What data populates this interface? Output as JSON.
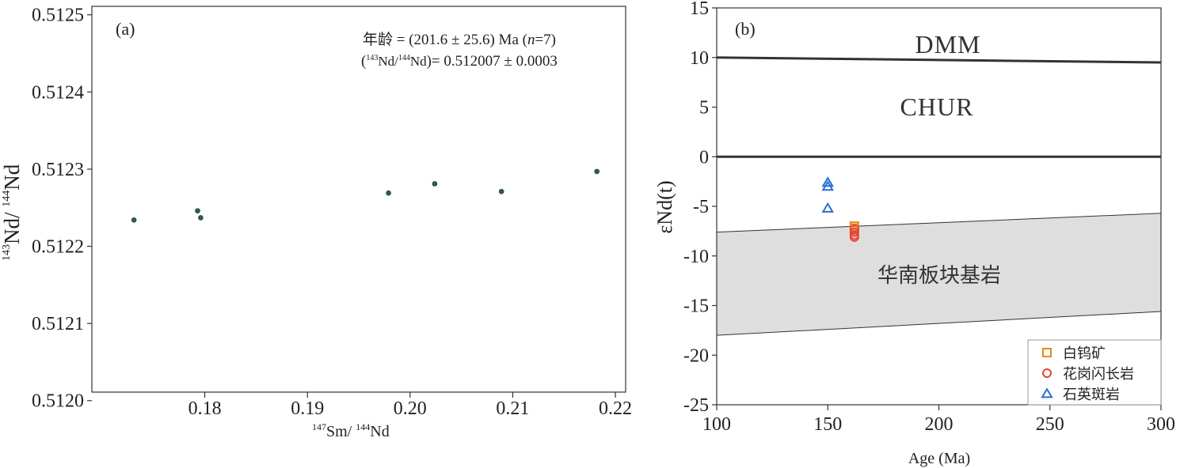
{
  "chart_data": [
    {
      "type": "scatter",
      "panel_label": "(a)",
      "xlabel": {
        "sup1": "147",
        "el1": "Sm/ ",
        "sup2": "144",
        "el2": "Nd"
      },
      "ylabel": {
        "sup1": "143",
        "el1": "Nd/ ",
        "sup2": "144",
        "el2": "Nd"
      },
      "xlim": [
        0.169,
        0.221
      ],
      "ylim": [
        0.512011,
        0.512511
      ],
      "xticks": [
        0.18,
        0.19,
        0.2,
        0.21,
        0.22
      ],
      "xtick_labels": [
        "0.18",
        "0.19",
        "0.20",
        "0.21",
        "0.22"
      ],
      "yticks": [
        0.512,
        0.5121,
        0.5122,
        0.5123,
        0.5124,
        0.5125
      ],
      "ytick_labels": [
        "0.5120",
        "0.5121",
        "0.5122",
        "0.5123",
        "0.5124",
        "0.5125"
      ],
      "points": [
        {
          "x": 0.1731,
          "y": 0.512234
        },
        {
          "x": 0.1793,
          "y": 0.512246
        },
        {
          "x": 0.1796,
          "y": 0.512237
        },
        {
          "x": 0.1979,
          "y": 0.512269
        },
        {
          "x": 0.2024,
          "y": 0.512281
        },
        {
          "x": 0.2089,
          "y": 0.512271
        },
        {
          "x": 0.2182,
          "y": 0.512297
        }
      ],
      "point_color": "#2e5d4f",
      "annotation_line1": "年龄 = (201.6 ± 25.6) Ma (",
      "annotation_n": "n",
      "annotation_line1_end": "=7)",
      "annotation_line2_open": "(",
      "annotation_line2_sup1": "143",
      "annotation_line2_el1": "Nd/",
      "annotation_line2_sup2": "144",
      "annotation_line2_el2": "Nd",
      "annotation_line2_rest": ")= 0.512007 ± 0.0003"
    },
    {
      "type": "scatter",
      "panel_label": "(b)",
      "xlabel": "Age (Ma)",
      "ylabel": "εNd(t)",
      "xlim": [
        100,
        300
      ],
      "ylim": [
        -25,
        15
      ],
      "xticks": [
        100,
        150,
        200,
        250,
        300
      ],
      "xtick_labels": [
        "100",
        "150",
        "200",
        "250",
        "300"
      ],
      "yticks": [
        15,
        10,
        5,
        0,
        -5,
        -10,
        -15,
        -20,
        -25
      ],
      "ytick_labels": [
        "15",
        "10",
        "5",
        "0",
        "-5",
        "-10",
        "-15",
        "-20",
        "-25"
      ],
      "dmm_line": [
        [
          100,
          10.0
        ],
        [
          300,
          9.5
        ]
      ],
      "chur_line": [
        [
          100,
          0
        ],
        [
          300,
          0
        ]
      ],
      "region": {
        "label": "华南板块基岩",
        "upper": [
          [
            100,
            -7.6
          ],
          [
            300,
            -5.7
          ]
        ],
        "lower": [
          [
            100,
            -18.0
          ],
          [
            300,
            -15.6
          ]
        ],
        "fill": "#dedede"
      },
      "region_labels": {
        "dmm": "DMM",
        "chur": "CHUR"
      },
      "series": [
        {
          "name": "白钨矿",
          "marker": "square",
          "color": "#e8891a",
          "points": [
            [
              162,
              -7.0
            ],
            [
              162,
              -7.2
            ],
            [
              162,
              -7.4
            ]
          ]
        },
        {
          "name": "花岗闪长岩",
          "marker": "circle",
          "color": "#e8423a",
          "points": [
            [
              162,
              -7.3
            ],
            [
              162,
              -7.6
            ],
            [
              162,
              -7.9
            ],
            [
              162,
              -8.1
            ]
          ]
        },
        {
          "name": "石英斑岩",
          "marker": "triangle",
          "color": "#2a6fd0",
          "points": [
            [
              150,
              -2.6
            ],
            [
              150,
              -3.0
            ],
            [
              150,
              -5.2
            ]
          ]
        }
      ]
    }
  ]
}
